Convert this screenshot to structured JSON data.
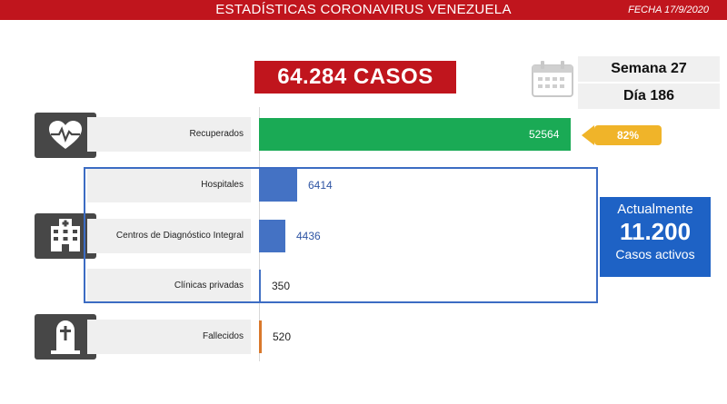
{
  "header": {
    "title": "ESTADÍSTICAS CORONAVIRUS VENEZUELA",
    "date": "FECHA 17/9/2020"
  },
  "total_cases_label": "64.284 CASOS",
  "week_label": "Semana 27",
  "day_label": "Día 186",
  "recovered_percent_label": "82%",
  "active_cases": {
    "title": "Actualmente",
    "value": "11.200",
    "caption": "Casos activos"
  },
  "colors": {
    "header_red": "#c0151d",
    "recovered_green": "#1aaa55",
    "hospital_blue": "#4472c4",
    "deceased_orange": "#d9782b",
    "active_blue": "#1e62c5",
    "percent_gold": "#f0b429"
  },
  "icons": [
    "heart-pulse-icon",
    "hospital-building-icon",
    "tombstone-icon",
    "calendar-icon"
  ],
  "chart_data": {
    "type": "bar",
    "orientation": "horizontal",
    "categories": [
      "Recuperados",
      "Hospitales",
      "Centros de Diagnóstico Integral",
      "Clínicas privadas",
      "Fallecidos"
    ],
    "values": [
      52564,
      6414,
      4436,
      350,
      520
    ],
    "xlim": [
      0,
      52564
    ],
    "grid": false
  }
}
